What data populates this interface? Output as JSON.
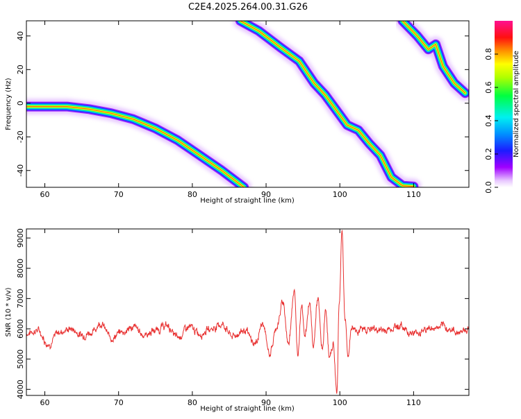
{
  "title": "C2E4.2025.264.00.31.G26",
  "colors": {
    "snr_line": "#e83030",
    "frame": "#000000",
    "background": "#ffffff"
  },
  "chart_data": [
    {
      "type": "heatmap",
      "xlabel": "Height of straight line (km)",
      "ylabel": "Frequency (Hz)",
      "xlim": [
        57.5,
        117.5
      ],
      "ylim": [
        -50,
        49
      ],
      "x_ticks": [
        60,
        70,
        80,
        90,
        100,
        110
      ],
      "y_ticks": [
        -40,
        -20,
        0,
        20,
        40
      ],
      "colorbar": {
        "label": "Normalized spectral amplitude",
        "range": [
          0,
          1
        ],
        "ticks": [
          0.0,
          0.2,
          0.4,
          0.6,
          0.8
        ],
        "colormap": "rainbow (white-violet-blue-cyan-green-yellow-orange-red-magenta)"
      },
      "ridges": [
        {
          "x": [
            57.5,
            60,
            63,
            66,
            69,
            72,
            75,
            78,
            81,
            84,
            87
          ],
          "y": [
            -2,
            -2,
            -2,
            -3.5,
            -6,
            -9.5,
            -15,
            -22,
            -31,
            -40,
            -50
          ]
        },
        {
          "x": [
            86.5,
            89,
            92,
            94.5,
            96.5,
            98,
            99.5,
            101,
            102.5,
            104,
            105.5,
            107,
            108.5,
            110
          ],
          "y": [
            49,
            43,
            33,
            25,
            12,
            5,
            -4,
            -13,
            -16,
            -24,
            -31,
            -44,
            -49,
            -49.5
          ]
        },
        {
          "x": [
            108.5,
            110.5,
            112,
            113,
            114,
            115.5,
            117
          ],
          "y": [
            49,
            40,
            32,
            35,
            22,
            12,
            6
          ]
        }
      ]
    },
    {
      "type": "line",
      "xlabel": "Height of straight line (km)",
      "ylabel": "SNR (10 * v/v)",
      "xlim": [
        57.5,
        117.5
      ],
      "ylim": [
        3800,
        9300
      ],
      "x_ticks": [
        60,
        70,
        80,
        90,
        100,
        110
      ],
      "y_ticks": [
        4000,
        5000,
        6000,
        7000,
        8000,
        9000
      ],
      "series": [
        {
          "x": [
            57.5,
            59,
            60.5,
            62,
            63.5,
            65,
            66.5,
            67.5,
            69,
            70.5,
            72,
            73.5,
            75,
            76.5,
            78,
            79.5,
            81,
            82.5,
            84,
            85.5,
            87,
            88.5,
            89.5,
            90.5,
            91.5,
            92.3,
            93,
            93.8,
            94.3,
            94.8,
            95.3,
            95.9,
            96.4,
            97,
            97.6,
            98.1,
            98.6,
            99.1,
            99.6,
            99.9,
            100.3,
            100.7,
            101.1,
            101.6,
            102.5,
            104,
            106,
            108,
            110,
            112,
            114,
            116,
            117.5
          ],
          "y": [
            5850,
            5950,
            5500,
            5900,
            6000,
            5800,
            5900,
            6200,
            5700,
            5900,
            6050,
            5800,
            5950,
            6100,
            5700,
            6050,
            5850,
            6000,
            6150,
            5750,
            5950,
            5500,
            6150,
            5200,
            6100,
            6900,
            5500,
            7250,
            5200,
            6800,
            5800,
            6900,
            5400,
            7000,
            5300,
            6600,
            5000,
            5500,
            3850,
            6800,
            9250,
            6300,
            5100,
            6050,
            5950,
            6000,
            5950,
            6100,
            5850,
            6000,
            6050,
            5900,
            6000
          ]
        }
      ]
    }
  ]
}
